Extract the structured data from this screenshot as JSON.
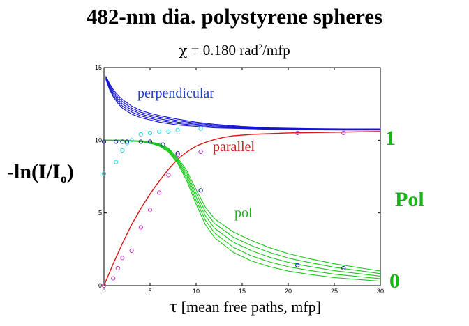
{
  "chart_data": {
    "type": "line",
    "title": "482-nm dia. polystyrene spheres",
    "subtitle": {
      "symbol": "χ",
      "value": "= 0.180 rad",
      "sup": "2",
      "unit": "/mfp"
    },
    "xlabel": {
      "symbol": "τ",
      "text": "[mean free  paths, mfp]"
    },
    "ylabel": {
      "main": "-ln(I/I",
      "sub": "o",
      "close": ")"
    },
    "right_axis": {
      "label": "Pol",
      "tick_top": "1",
      "tick_bottom": "0"
    },
    "xlim": [
      0,
      30
    ],
    "ylim": [
      0,
      15
    ],
    "x_ticks": [
      0,
      5,
      10,
      15,
      20,
      25,
      30
    ],
    "y_ticks": [
      0,
      5,
      10,
      15
    ],
    "annotations": [
      {
        "text": "perpendicular",
        "color": "#1e3cc8"
      },
      {
        "text": "parallel",
        "color": "#d21e1e"
      },
      {
        "text": "pol",
        "color": "#19b419"
      }
    ],
    "colors": {
      "perpendicular": "#1414d2",
      "parallel": "#dc1414",
      "pol": "#19c819",
      "perp_markers": "#32d2e6",
      "par_markers": "#c832c8",
      "pol_markers": "#0a1e8c"
    },
    "series": [
      {
        "name": "perpendicular",
        "style": "band",
        "x": [
          0.2,
          0.6,
          1,
          1.5,
          2,
          3,
          4,
          5,
          6,
          8,
          10,
          12,
          15,
          18,
          22,
          26,
          30
        ],
        "lower": [
          14.2,
          13.5,
          13.0,
          12.55,
          12.2,
          11.8,
          11.55,
          11.4,
          11.25,
          11.05,
          10.95,
          10.85,
          10.8,
          10.75,
          10.72,
          10.7,
          10.7
        ],
        "upper": [
          14.4,
          13.9,
          13.5,
          13.1,
          12.8,
          12.35,
          12.05,
          11.85,
          11.7,
          11.45,
          11.25,
          11.1,
          10.95,
          10.85,
          10.8,
          10.78,
          10.78
        ],
        "n_lines": 5
      },
      {
        "name": "parallel",
        "style": "line",
        "x": [
          0,
          1,
          2,
          3,
          4,
          5,
          6,
          7,
          8,
          9,
          10,
          11,
          12,
          13,
          14,
          16,
          18,
          20,
          22,
          25,
          28,
          30
        ],
        "y": [
          0,
          1.5,
          2.9,
          4.2,
          5.3,
          6.3,
          7.2,
          8.0,
          8.7,
          9.2,
          9.6,
          9.85,
          10.05,
          10.2,
          10.3,
          10.4,
          10.45,
          10.5,
          10.52,
          10.55,
          10.58,
          10.6
        ]
      },
      {
        "name": "pol",
        "style": "band",
        "x": [
          0,
          2,
          4,
          5,
          6,
          7,
          8,
          9,
          10,
          11,
          12,
          14,
          16,
          18,
          20,
          22,
          25,
          28,
          30
        ],
        "lower": [
          1.0,
          0.998,
          0.99,
          0.98,
          0.96,
          0.92,
          0.84,
          0.72,
          0.56,
          0.42,
          0.33,
          0.23,
          0.17,
          0.13,
          0.1,
          0.08,
          0.055,
          0.04,
          0.03
        ],
        "upper": [
          1.0,
          1.0,
          0.995,
          0.988,
          0.975,
          0.945,
          0.88,
          0.79,
          0.66,
          0.54,
          0.46,
          0.37,
          0.31,
          0.26,
          0.22,
          0.19,
          0.15,
          0.12,
          0.1
        ],
        "n_lines": 5,
        "axis": "right"
      },
      {
        "name": "parallel_points",
        "style": "markers",
        "x": [
          0,
          1,
          1.5,
          2,
          3,
          4,
          5,
          6,
          7,
          8
        ],
        "y": [
          0,
          0.5,
          1.2,
          1.9,
          2.4,
          4.0,
          5.2,
          6.4,
          7.6,
          9.0
        ]
      },
      {
        "name": "perpendicular_points",
        "style": "markers",
        "x": [
          0,
          1.3,
          2,
          2.5,
          3,
          4,
          5,
          6,
          7,
          8,
          10.5
        ],
        "y": [
          7.7,
          8.5,
          9.3,
          9.8,
          10.0,
          10.4,
          10.5,
          10.6,
          10.6,
          10.7,
          10.8
        ]
      },
      {
        "name": "pol_points",
        "style": "markers",
        "axis": "right",
        "x": [
          0,
          1.3,
          2,
          2.5,
          4,
          5,
          6.4,
          8,
          10.5,
          21,
          26
        ],
        "y": [
          0.99,
          0.99,
          0.99,
          0.99,
          0.99,
          0.99,
          0.97,
          0.91,
          0.655,
          0.14,
          0.12
        ]
      },
      {
        "name": "par_tail_points",
        "style": "markers",
        "x": [
          10.5,
          21,
          26
        ],
        "y": [
          9.2,
          10.5,
          10.5
        ]
      }
    ]
  }
}
